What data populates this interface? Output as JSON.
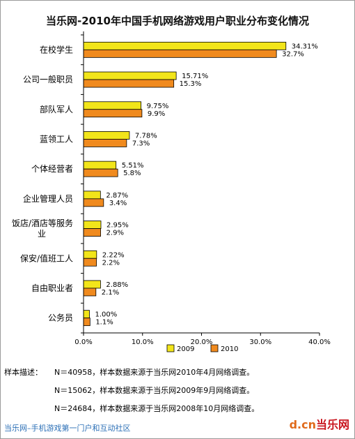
{
  "chart_data": {
    "type": "bar",
    "orientation": "horizontal",
    "title": "当乐网-2010年中国手机网络游戏用户职业分布变化情况",
    "categories": [
      [
        "在校学生"
      ],
      [
        "公司一般职员"
      ],
      [
        "部队军人"
      ],
      [
        "蓝领工人"
      ],
      [
        "个体经营者"
      ],
      [
        "企业管理人员"
      ],
      [
        "饭店/酒店等服务",
        "业"
      ],
      [
        "保安/值班工人"
      ],
      [
        "自由职业者"
      ],
      [
        "公务员"
      ]
    ],
    "series": [
      {
        "name": "2009",
        "color": "#f2e51a",
        "values": [
          34.31,
          15.71,
          9.75,
          7.78,
          5.51,
          2.87,
          2.95,
          2.22,
          2.88,
          1.0
        ],
        "labels": [
          "34.31%",
          "15.71%",
          "9.75%",
          "7.78%",
          "5.51%",
          "2.87%",
          "2.95%",
          "2.22%",
          "2.88%",
          "1.00%"
        ]
      },
      {
        "name": "2010",
        "color": "#f08a1e",
        "values": [
          32.7,
          15.3,
          9.9,
          7.3,
          5.8,
          3.4,
          2.9,
          2.2,
          2.1,
          1.1
        ],
        "labels": [
          "32.7%",
          "15.3%",
          "9.9%",
          "7.3%",
          "5.8%",
          "3.4%",
          "2.9%",
          "2.2%",
          "2.1%",
          "1.1%"
        ]
      }
    ],
    "xlim": [
      0,
      40
    ],
    "xticks": [
      0,
      10,
      20,
      30,
      40
    ],
    "xtick_labels": [
      "0.0%",
      "10.0%",
      "20.0%",
      "30.0%",
      "40.0%"
    ],
    "grid": false,
    "legend_position": "bottom-right"
  },
  "notes": {
    "label": "样本描述：",
    "lines": [
      "N＝40958，样本数据来源于当乐网2010年4月网络调查。",
      "N＝15062，样本数据来源于当乐网2009年9月网络调查。",
      "N＝24684，样本数据来源于当乐网2008年10月网络调查。"
    ]
  },
  "footer": "当乐网–手机游戏第一门户和互动社区",
  "logo": {
    "d": "d",
    "cn": ".cn",
    "brand": "当乐网"
  }
}
